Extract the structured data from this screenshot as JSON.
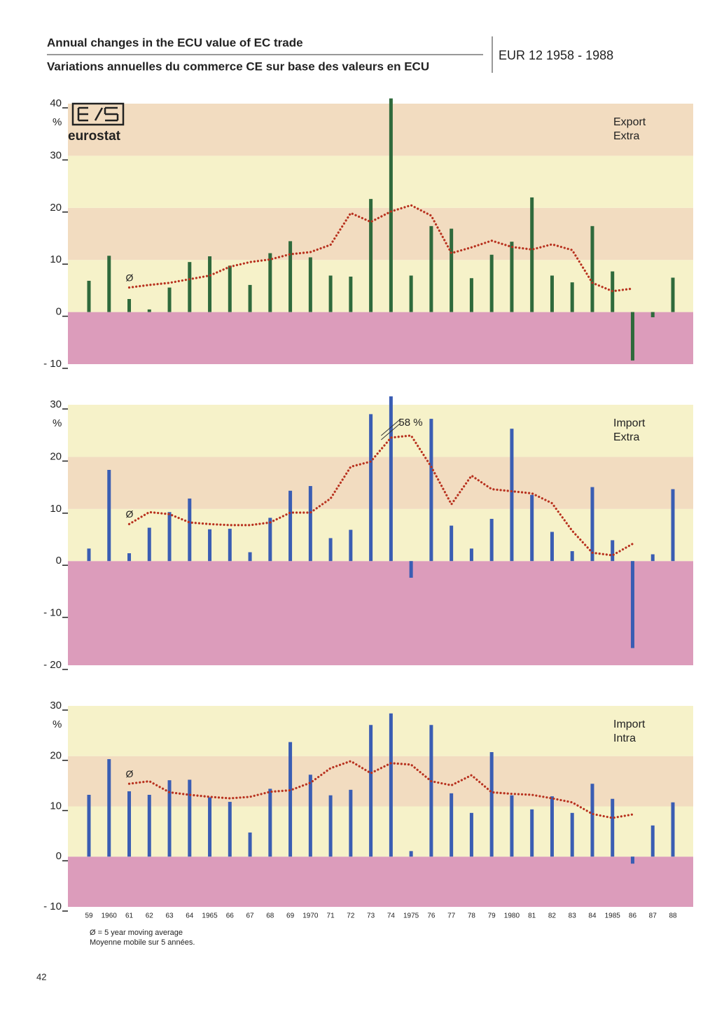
{
  "header": {
    "title": "Annual changes in the ECU value of EC trade",
    "subtitle": "Variations annuelles du commerce CE sur base des valeurs en ECU",
    "region": "EUR 12 1958 - 1988",
    "logo": "eurostat"
  },
  "footnote": [
    "Ø = 5 year moving average",
    "Moyenne mobile sur 5 années."
  ],
  "page_number": "42",
  "chart_data": [
    {
      "type": "bar",
      "label": [
        "Export",
        "Extra"
      ],
      "unit": "%",
      "color": "#2f6a3c",
      "ylim": [
        -10,
        40
      ],
      "yticks": [
        {
          "value": -10,
          "label": "- 10"
        },
        0,
        10,
        20,
        30,
        40
      ],
      "values": [
        6,
        10.8,
        2.5,
        0.5,
        4.7,
        9.6,
        10.7,
        8.9,
        5.2,
        11.3,
        13.6,
        10.5,
        7,
        6.8,
        21.7,
        41,
        7,
        16.5,
        16,
        6.5,
        11,
        13.5,
        22,
        7,
        5.7,
        16.5,
        7.8,
        -9.3,
        -1,
        6.6
      ],
      "moving_average": {
        "label": "Ø",
        "color": "#b8321f",
        "values": [
          null,
          null,
          4.7,
          5.2,
          5.6,
          6.3,
          7,
          8.7,
          9.6,
          10.1,
          11.1,
          11.5,
          12.9,
          19,
          17.3,
          19.3,
          20.5,
          18.5,
          11.3,
          12.4,
          13.7,
          12.5,
          12,
          13,
          11.9,
          5.6,
          4,
          4.5,
          null,
          null
        ]
      }
    },
    {
      "type": "bar",
      "label": [
        "Import",
        "Extra"
      ],
      "unit": "%",
      "color": "#3a5db3",
      "ylim": [
        -20,
        30
      ],
      "yticks": [
        {
          "value": -20,
          "label": "- 20"
        },
        {
          "value": -10,
          "label": "- 10"
        },
        0,
        10,
        20,
        30
      ],
      "values": [
        2.4,
        17.5,
        1.5,
        6.4,
        9.4,
        12,
        6.1,
        6.2,
        1.7,
        8.3,
        13.5,
        14.4,
        4.4,
        6,
        28.2,
        58,
        -3.2,
        27.3,
        6.8,
        2.4,
        8.1,
        25.4,
        12.7,
        5.6,
        1.9,
        14.2,
        4,
        -16.7,
        1.3,
        13.8
      ],
      "value_labels": [
        null,
        null,
        null,
        null,
        null,
        null,
        null,
        null,
        null,
        null,
        null,
        null,
        null,
        null,
        null,
        "58 %",
        null,
        null,
        null,
        null,
        null,
        null,
        null,
        null,
        null,
        null,
        null,
        null,
        null,
        null
      ],
      "moving_average": {
        "label": "Ø",
        "color": "#b8321f",
        "values": [
          null,
          null,
          7.1,
          9.4,
          9,
          7.4,
          7.1,
          6.9,
          6.9,
          7.4,
          9.3,
          9.3,
          12,
          18.1,
          19.1,
          23.7,
          24.1,
          18.1,
          10.9,
          16.4,
          13.8,
          13.4,
          13,
          11.1,
          5.8,
          1.6,
          1.1,
          3.3,
          null,
          null
        ]
      }
    },
    {
      "type": "bar",
      "label": [
        "Import",
        "Intra"
      ],
      "unit": "%",
      "color": "#3a5db3",
      "ylim": [
        -10,
        30
      ],
      "yticks": [
        {
          "value": -10,
          "label": "- 10"
        },
        0,
        10,
        20,
        30
      ],
      "categories": [
        "59",
        "1960",
        "61",
        "62",
        "63",
        "64",
        "1965",
        "66",
        "67",
        "68",
        "69",
        "1970",
        "71",
        "72",
        "73",
        "74",
        "1975",
        "76",
        "77",
        "78",
        "79",
        "1980",
        "81",
        "82",
        "83",
        "84",
        "1985",
        "86",
        "87",
        "88"
      ],
      "values": [
        12.3,
        19.4,
        13,
        12.3,
        15.2,
        15.3,
        11.8,
        10.9,
        4.8,
        13.5,
        22.8,
        16.3,
        12.2,
        13.3,
        26.2,
        28.5,
        1.1,
        26.2,
        12.6,
        8.7,
        20.8,
        12.2,
        9.4,
        12,
        8.7,
        14.5,
        11.5,
        -1.4,
        6.2,
        10.8
      ],
      "moving_average": {
        "label": "Ø",
        "color": "#b8321f",
        "values": [
          null,
          null,
          14.5,
          15,
          12.8,
          12.3,
          11.9,
          11.6,
          11.9,
          12.9,
          13.2,
          14.7,
          17.6,
          19,
          16.6,
          18.6,
          18.3,
          15,
          14.2,
          16.2,
          12.8,
          12.5,
          12.3,
          11.6,
          10.8,
          8.5,
          7.7,
          8.4,
          null,
          null
        ]
      }
    }
  ]
}
